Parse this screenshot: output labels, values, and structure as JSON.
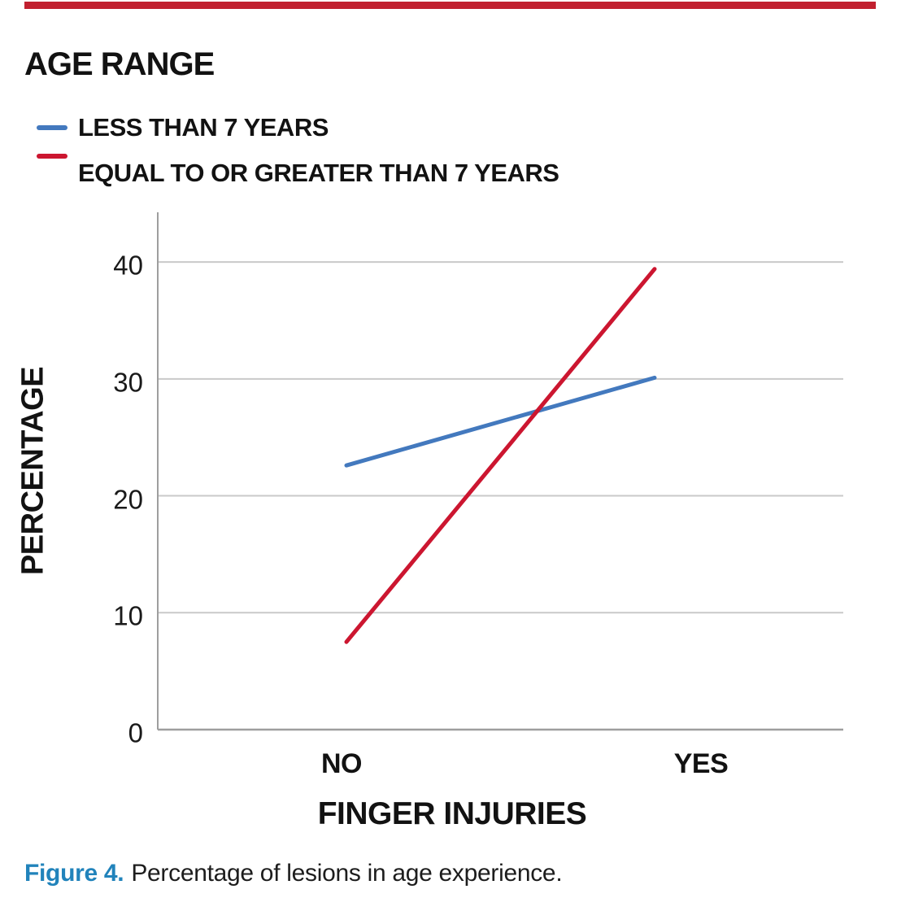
{
  "accent_bar": {
    "color": "#c1202f"
  },
  "legend": {
    "title": "AGE RANGE",
    "items": [
      {
        "label": "LESS THAN 7 YEARS",
        "color": "#4379be"
      },
      {
        "label": "EQUAL TO OR GREATER THAN 7 YEARS",
        "color": "#cc1630"
      }
    ]
  },
  "chart_data": {
    "type": "line",
    "categories": [
      "NO",
      "YES"
    ],
    "series": [
      {
        "name": "LESS THAN 7 YEARS",
        "color": "#4379be",
        "values": [
          22.6,
          30.1
        ]
      },
      {
        "name": "EQUAL TO OR GREATER THAN 7 YEARS",
        "color": "#cc1630",
        "values": [
          7.5,
          39.4
        ]
      }
    ],
    "title": "",
    "xlabel": "FINGER INJURIES",
    "ylabel": "PERCENTAGE",
    "ylim": [
      0,
      44
    ],
    "yticks": [
      0,
      10,
      20,
      30,
      40
    ],
    "grid": true,
    "gridline_color": "#c9c9c9",
    "axis_color": "#9e9e9e",
    "legend_position": "top-left"
  },
  "caption": {
    "label": "Figure 4.",
    "label_color": "#2183bb",
    "text": "Percentage of lesions in age experience."
  }
}
